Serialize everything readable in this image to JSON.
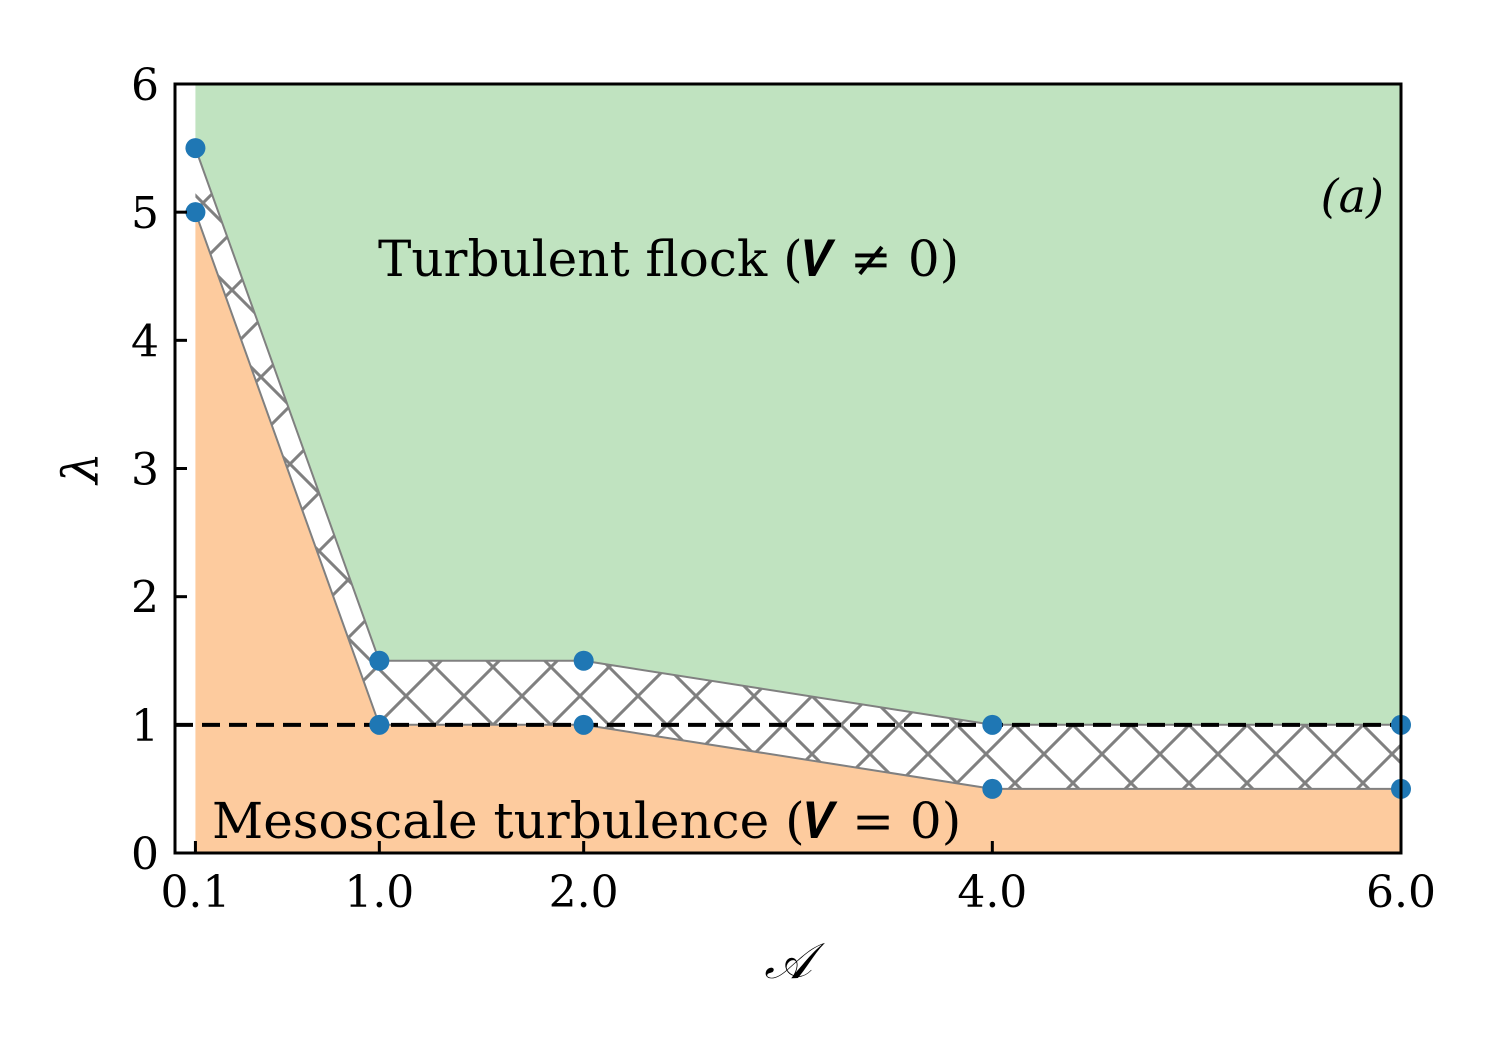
{
  "chart_data": {
    "type": "area",
    "xlabel": "𝒜",
    "ylabel": "λ",
    "xlim": [
      0.0,
      6.0
    ],
    "ylim": [
      0,
      6
    ],
    "x_ticks": [
      0.1,
      1.0,
      2.0,
      4.0,
      6.0
    ],
    "x_tick_labels": [
      "0.1",
      "1.0",
      "2.0",
      "4.0",
      "6.0"
    ],
    "y_ticks": [
      0,
      1,
      2,
      3,
      4,
      5,
      6
    ],
    "y_tick_labels": [
      "0",
      "1",
      "2",
      "3",
      "4",
      "5",
      "6"
    ],
    "grid": false,
    "series": [
      {
        "role": "upper-boundary",
        "x": [
          0.1,
          1.0,
          2.0,
          4.0,
          6.0
        ],
        "y": [
          5.5,
          1.5,
          1.5,
          1.0,
          1.0
        ],
        "color": "#1f77b4"
      },
      {
        "role": "lower-boundary",
        "x": [
          0.1,
          1.0,
          2.0,
          4.0,
          6.0
        ],
        "y": [
          5.0,
          1.0,
          1.0,
          0.5,
          0.5
        ],
        "color": "#1f77b4"
      }
    ],
    "reference_line": {
      "y": 1.0,
      "style": "dashed",
      "color": "#000000"
    },
    "regions": [
      {
        "label": "Turbulent flock (𝑽 ≠ 0)",
        "color": "#c0e3c0"
      },
      {
        "label": "Mesoscale turbulence (𝑽 = 0)",
        "color": "#fdcb9e"
      },
      {
        "label": "",
        "pattern": "crosshatch",
        "hatch_color": "#808080"
      }
    ],
    "panel_label": "(a)"
  }
}
